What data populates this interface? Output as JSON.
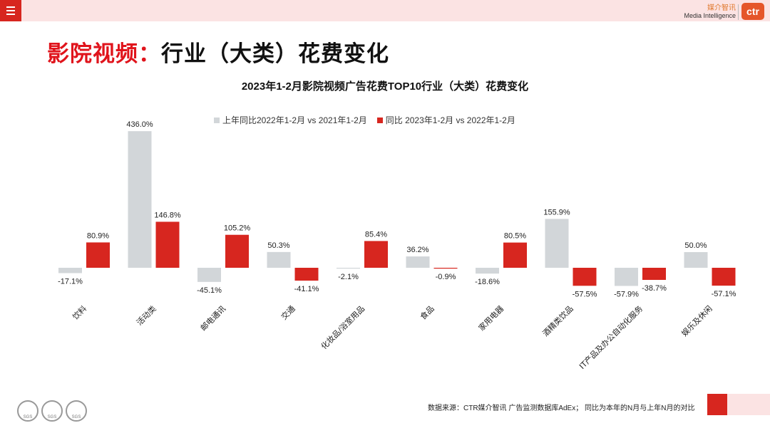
{
  "header": {
    "brand_cn": "媒介智讯",
    "brand_en": "Media Intelligence",
    "logo_text": "ctr"
  },
  "title": {
    "accent": "影院视频：",
    "rest": "行业（大类）花费变化"
  },
  "chart_data": {
    "type": "bar",
    "title": "2023年1-2月影院视频广告花费TOP10行业（大类）花费变化",
    "categories": [
      "饮料",
      "活动类",
      "邮电通讯",
      "交通",
      "化妆品/浴室用品",
      "食品",
      "家用电器",
      "酒精类饮品",
      "IT产品及办公自动化服务",
      "娱乐及休闲"
    ],
    "series": [
      {
        "name": "上年同比2022年1-2月 vs 2021年1-2月",
        "color": "#d2d6d9",
        "values": [
          -17.1,
          436.0,
          -45.1,
          50.3,
          -2.1,
          36.2,
          -18.6,
          155.9,
          -57.9,
          50.0
        ],
        "labels": [
          "-17.1%",
          "436.0%",
          "-45.1%",
          "50.3%",
          "-2.1%",
          "36.2%",
          "-18.6%",
          "155.9%",
          "-57.9%",
          "50.0%"
        ]
      },
      {
        "name": "同比 2023年1-2月 vs 2022年1-2月",
        "color": "#d7261f",
        "values": [
          80.9,
          146.8,
          105.2,
          -41.1,
          85.4,
          -0.9,
          80.5,
          -57.5,
          -38.7,
          -57.1
        ],
        "labels": [
          "80.9%",
          "146.8%",
          "105.2%",
          "-41.1%",
          "85.4%",
          "-0.9%",
          "80.5%",
          "-57.5%",
          "-38.7%",
          "-57.1%"
        ]
      }
    ],
    "unit": "%",
    "grid": false,
    "legend_position": "top"
  },
  "footer": {
    "source": "数据来源：CTR媒介智讯 广告监测数据库AdEx；  同比为本年的N月与上年N月的对比",
    "cert_label": "SGS"
  }
}
